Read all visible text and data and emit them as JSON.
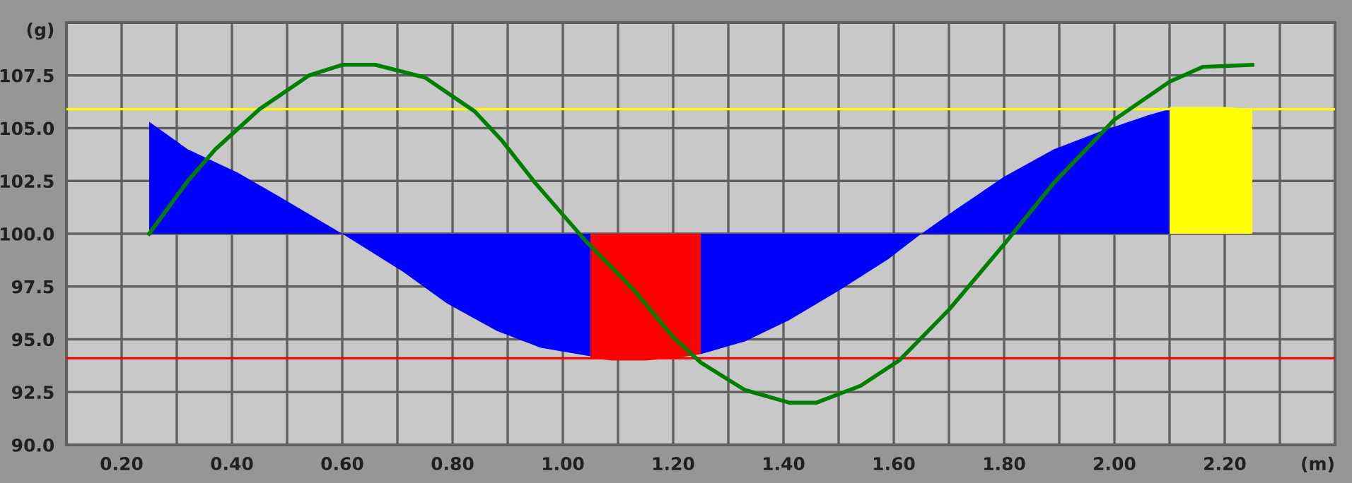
{
  "chart_data": {
    "type": "area",
    "xlim": [
      0.1,
      2.4
    ],
    "ylim": [
      90,
      110
    ],
    "xticks": [
      {
        "value": 0.2,
        "label": "0.20"
      },
      {
        "value": 0.3,
        "label": null
      },
      {
        "value": 0.4,
        "label": "0.40"
      },
      {
        "value": 0.5,
        "label": null
      },
      {
        "value": 0.6,
        "label": "0.60"
      },
      {
        "value": 0.7,
        "label": null
      },
      {
        "value": 0.8,
        "label": "0.80"
      },
      {
        "value": 0.9,
        "label": null
      },
      {
        "value": 1.0,
        "label": "1.00"
      },
      {
        "value": 1.1,
        "label": null
      },
      {
        "value": 1.2,
        "label": "1.20"
      },
      {
        "value": 1.3,
        "label": null
      },
      {
        "value": 1.4,
        "label": "1.40"
      },
      {
        "value": 1.5,
        "label": null
      },
      {
        "value": 1.6,
        "label": "1.60"
      },
      {
        "value": 1.7,
        "label": null
      },
      {
        "value": 1.8,
        "label": "1.80"
      },
      {
        "value": 1.9,
        "label": null
      },
      {
        "value": 2.0,
        "label": "2.00"
      },
      {
        "value": 2.1,
        "label": null
      },
      {
        "value": 2.2,
        "label": "2.20"
      },
      {
        "value": 2.3,
        "label": null
      },
      {
        "value": 2.4,
        "label": "(m)"
      }
    ],
    "yticks": [
      {
        "value": 90,
        "label": "90.0"
      },
      92.5,
      {
        "value": 95,
        "label": "95.0"
      },
      97.5,
      {
        "value": 100,
        "label": "100.0"
      },
      102.5,
      {
        "value": 105,
        "label": "105.0"
      },
      107.5,
      {
        "value": 110,
        "label": "(g)"
      }
    ],
    "grid": true,
    "legend": false,
    "series": [
      {
        "color": "#0000ff",
        "x": [
          0.25,
          0.25,
          0.32,
          0.41,
          0.49,
          0.6,
          0.71,
          0.79,
          0.88,
          0.96,
          1.05,
          1.05
        ],
        "values": [
          100,
          105.3,
          104.0,
          102.9,
          101.7,
          100.0,
          98.2,
          96.7,
          95.4,
          94.6,
          94.2,
          100
        ]
      },
      {
        "color": "#ff0000",
        "x": [
          1.05,
          1.05,
          1.09,
          1.15,
          1.2,
          1.25,
          1.25
        ],
        "values": [
          100,
          94.1,
          94.0,
          94.0,
          94.1,
          94.3,
          100
        ]
      },
      {
        "color": "#0000ff",
        "x": [
          1.25,
          1.25,
          1.33,
          1.41,
          1.5,
          1.59,
          1.65,
          1.71,
          1.8,
          1.89,
          1.97,
          2.06,
          2.1,
          2.1
        ],
        "values": [
          100,
          94.3,
          94.9,
          95.9,
          97.3,
          98.8,
          100.0,
          101.1,
          102.7,
          104.0,
          104.8,
          105.6,
          105.9,
          100
        ]
      },
      {
        "color": "#ffff00",
        "x": [
          2.1,
          2.1,
          2.15,
          2.2,
          2.25,
          2.25
        ],
        "values": [
          100,
          106.0,
          106.0,
          106.0,
          105.9,
          100
        ]
      },
      {
        "type": "line",
        "color": "#008000",
        "x": [
          0.25,
          0.32,
          0.37,
          0.45,
          0.54,
          0.6,
          0.66,
          0.75,
          0.84,
          0.89,
          0.95,
          1.04,
          1.13,
          1.2,
          1.25,
          1.33,
          1.41,
          1.46,
          1.54,
          1.61,
          1.7,
          1.8,
          1.89,
          2.0,
          2.1,
          2.16,
          2.25
        ],
        "values": [
          100.0,
          102.5,
          104.0,
          105.9,
          107.5,
          108.0,
          108.0,
          107.4,
          105.8,
          104.4,
          102.4,
          99.7,
          97.3,
          95.1,
          93.9,
          92.6,
          92.0,
          92.0,
          92.8,
          94.0,
          96.4,
          99.5,
          102.4,
          105.4,
          107.2,
          107.9,
          108.0
        ]
      }
    ],
    "ref_lines": [
      {
        "axis": "y",
        "value": 105.9,
        "color": "#ffff00",
        "line_style": "solid"
      },
      {
        "axis": "y",
        "value": 94.1,
        "color": "#ff0000",
        "line_style": "solid"
      }
    ]
  }
}
